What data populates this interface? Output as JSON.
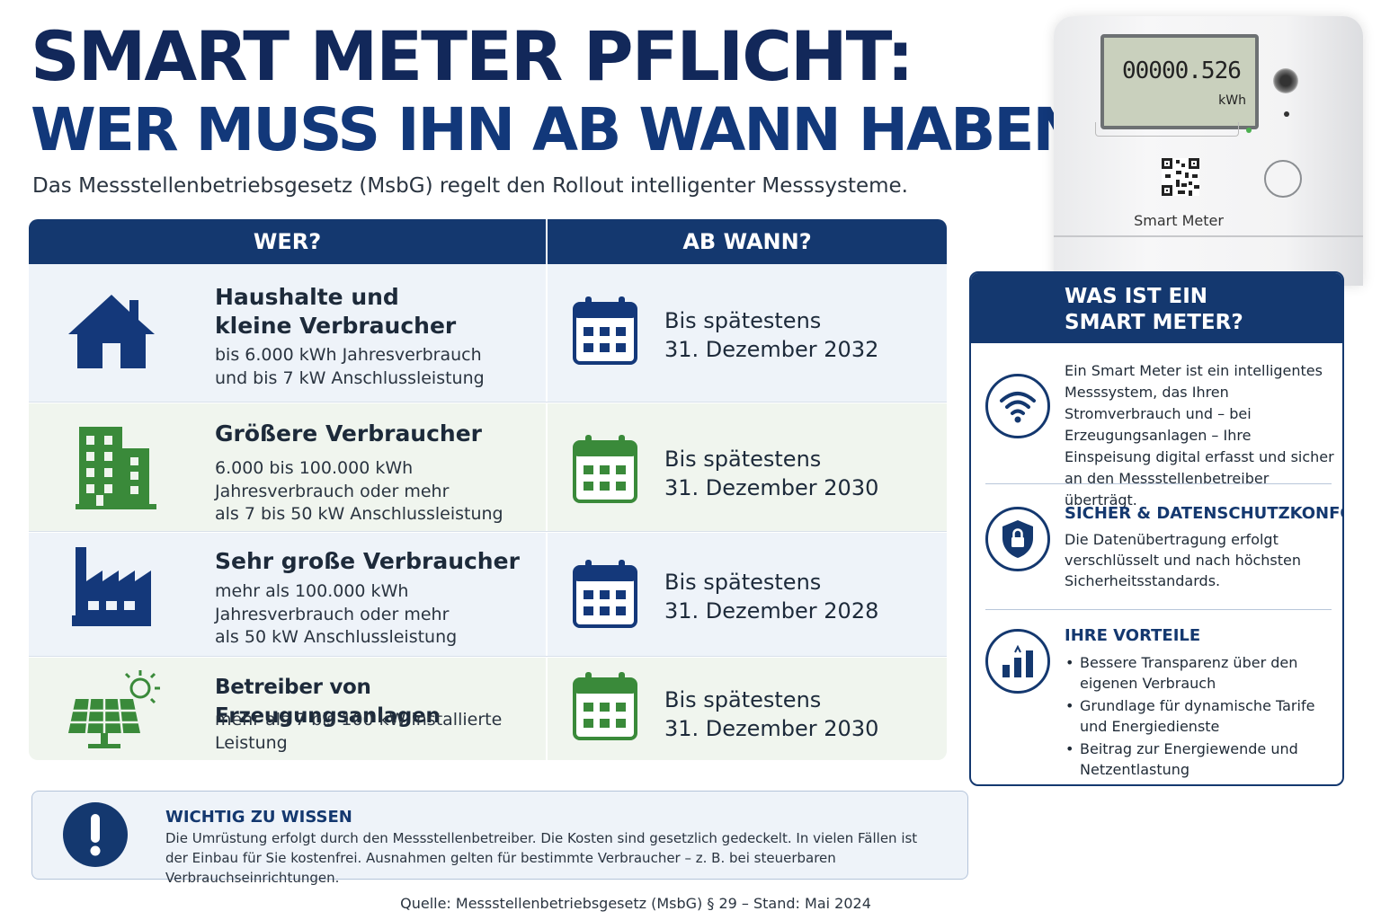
{
  "header": {
    "title_line1": "SMART METER PFLICHT:",
    "title_line2": "WER MUSS IHN AB WANN HABEN?",
    "subtitle": "Das Messstellenbetriebsgesetz (MsbG) regelt den Rollout intelligenter Messsysteme."
  },
  "table": {
    "col_wer": "WER?",
    "col_ab_wann": "AB WANN?",
    "rows": [
      {
        "icon": "house-icon",
        "title": "Haushalte und\nkleine Verbraucher",
        "desc": "bis 6.000 kWh Jahresverbrauch\nund bis 7 kW Anschlussleistung",
        "date_prefix": "Bis spätestens",
        "date": "31. Dezember 2032",
        "color": "#14387a"
      },
      {
        "icon": "buildings-icon",
        "title": "Größere Verbraucher",
        "desc": "6.000 bis 100.000 kWh\nJahresverbrauch oder mehr\nals 7 bis 50 kW Anschlussleistung",
        "date_prefix": "Bis spätestens",
        "date": "31. Dezember 2030",
        "color": "#3a8a3a"
      },
      {
        "icon": "factory-icon",
        "title": "Sehr große Verbraucher",
        "desc": "mehr als 100.000 kWh\nJahresverbrauch oder mehr\nals 50 kW Anschlussleistung",
        "date_prefix": "Bis spätestens",
        "date": "31. Dezember 2028",
        "color": "#14387a"
      },
      {
        "icon": "solar-panel-icon",
        "title": "Betreiber von Erzeugungsanlagen",
        "desc": "mehr als 7 bis 100 kW installierte\nLeistung",
        "date_prefix": "Bis spätestens",
        "date": "31. Dezember 2030",
        "color": "#3a8a3a"
      }
    ]
  },
  "device": {
    "reading": "00000.526",
    "unit": "kWh",
    "label": "Smart Meter"
  },
  "panel": {
    "title": "WAS IST EIN\nSMART METER?",
    "intro": "Ein Smart Meter ist ein intelligentes Messsystem, das Ihren Stromverbrauch und – bei Erzeugungsanlagen – Ihre Einspeisung digital erfasst und sicher an den Messstellenbetreiber überträgt.",
    "security_heading": "SICHER & DATENSCHUTZKONFORM",
    "security_text": "Die Datenübertragung erfolgt verschlüsselt und nach höchsten Sicherheitsstandards.",
    "benefits_heading": "IHRE VORTEILE",
    "benefits": [
      "Bessere Transparenz über den eigenen Verbrauch",
      "Grundlage für dynamische Tarife und Energiedienste",
      "Beitrag zur Energiewende und Netzentlastung"
    ]
  },
  "note": {
    "heading": "WICHTIG ZU WISSEN",
    "text": "Die Umrüstung erfolgt durch den Messstellenbetreiber. Die Kosten sind gesetzlich gedeckelt. In vielen Fällen ist\nder Einbau für Sie kostenfrei. Ausnahmen gelten für bestimmte Verbraucher – z. B. bei steuerbaren Verbrauchseinrichtungen."
  },
  "footer": {
    "source": "Quelle: Messstellenbetriebsgesetz (MsbG) § 29 – Stand: Mai 2024"
  },
  "colors": {
    "navy": "#14386f",
    "green": "#3a8a3a",
    "row_blue": "#eef3f9",
    "row_green": "#f0f5ee"
  }
}
